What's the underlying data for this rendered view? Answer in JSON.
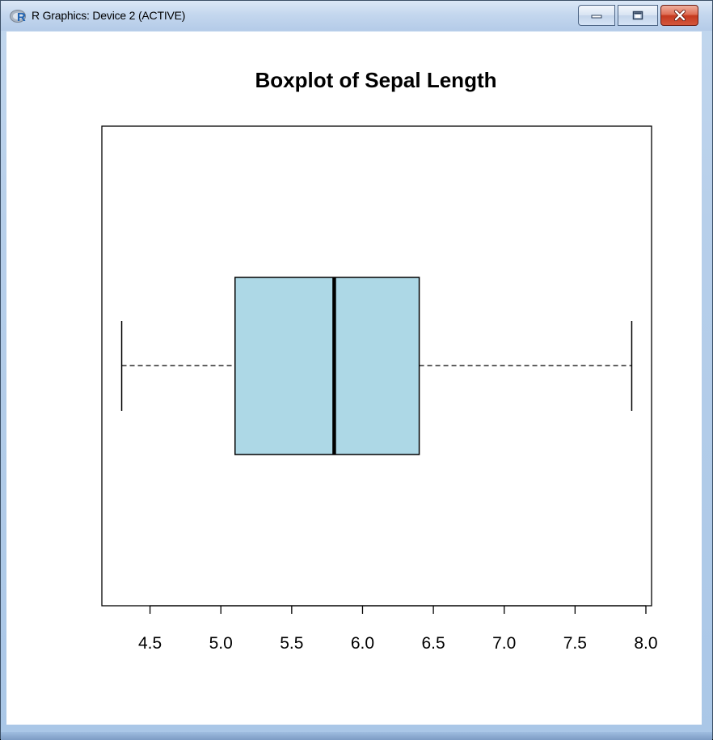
{
  "window": {
    "title": "R Graphics: Device 2 (ACTIVE)",
    "icon": "r-logo-icon",
    "controls": [
      "minimize-icon",
      "maximize-icon",
      "close-icon"
    ]
  },
  "colors": {
    "box_fill": "#add8e6",
    "stroke": "#000000",
    "close_button": "#c4391f"
  },
  "chart_data": {
    "type": "boxplot",
    "orientation": "horizontal",
    "title": "Boxplot of Sepal Length",
    "xlabel": "",
    "ylabel": "",
    "xlim": [
      4.16,
      8.04
    ],
    "xticks": [
      4.5,
      5.0,
      5.5,
      6.0,
      6.5,
      7.0,
      7.5,
      8.0
    ],
    "xtick_labels": [
      "4.5",
      "5.0",
      "5.5",
      "6.0",
      "6.5",
      "7.0",
      "7.5",
      "8.0"
    ],
    "box": {
      "min": 4.3,
      "q1": 5.1,
      "median": 5.8,
      "q3": 6.4,
      "max": 7.9
    },
    "grid": false,
    "legend": "none"
  }
}
